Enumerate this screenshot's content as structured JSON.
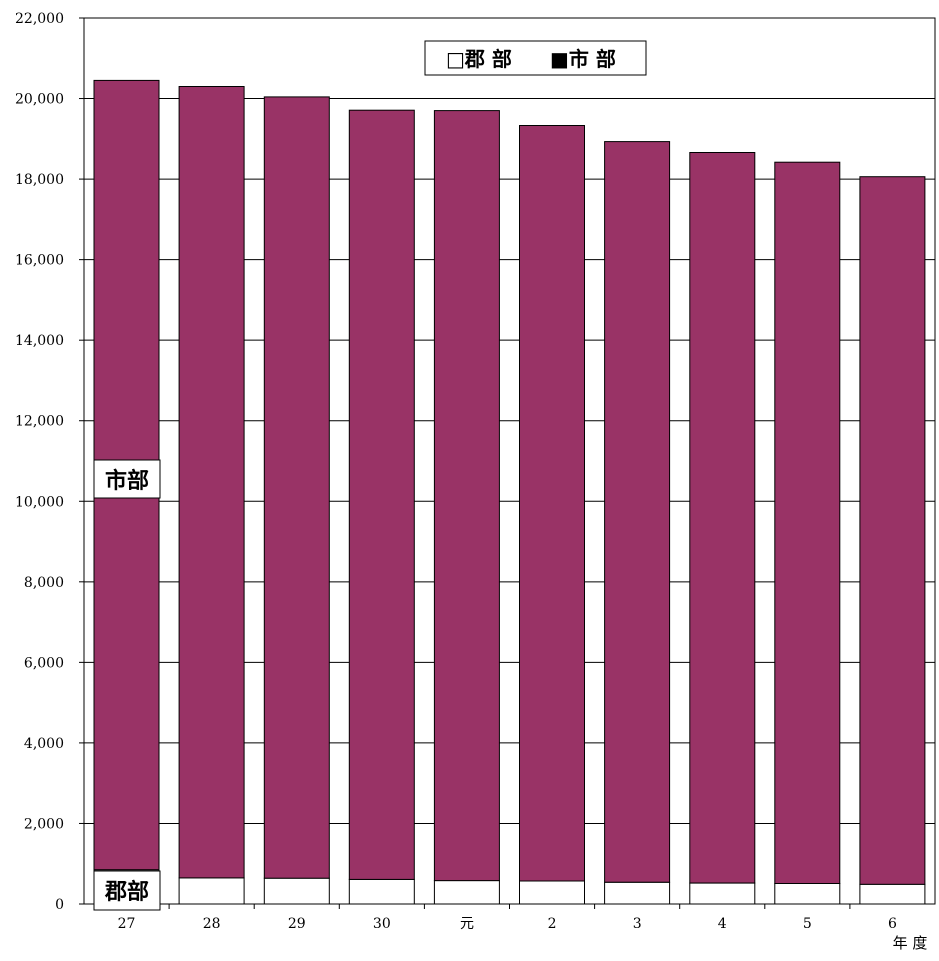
{
  "chart_data": {
    "type": "bar",
    "stacked": true,
    "categories": [
      "27",
      "28",
      "29",
      "30",
      "元",
      "2",
      "3",
      "4",
      "5",
      "6"
    ],
    "series": [
      {
        "name": "郡 部",
        "color": "#ffffff",
        "values": [
          850,
          650,
          640,
          610,
          580,
          570,
          540,
          520,
          510,
          490
        ]
      },
      {
        "name": "市 部",
        "color": "#993366",
        "values": [
          19600,
          19650,
          19400,
          19100,
          19120,
          18760,
          18390,
          18140,
          17910,
          17570
        ]
      }
    ],
    "title": "",
    "xlabel": "年 度",
    "ylabel": "",
    "ylim": [
      0,
      22000
    ],
    "yticks": [
      0,
      2000,
      4000,
      6000,
      8000,
      10000,
      12000,
      14000,
      16000,
      18000,
      20000,
      22000
    ],
    "ytick_labels": [
      "0",
      "2,000",
      "4,000",
      "6,000",
      "8,000",
      "10,000",
      "12,000",
      "14,000",
      "16,000",
      "18,000",
      "20,000",
      "22,000"
    ],
    "grid": true,
    "legend": {
      "placement": "top-center",
      "entries": [
        "□郡 部",
        "■市 部"
      ]
    },
    "annotations": [
      "市部",
      "郡部"
    ]
  }
}
